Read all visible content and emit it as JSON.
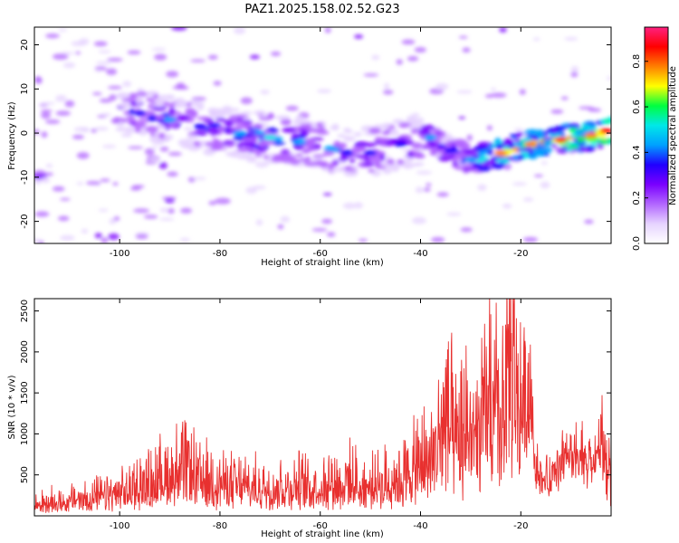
{
  "figure": {
    "title": "PAZ1.2025.158.02.52.G23"
  },
  "chart_data": [
    {
      "type": "heatmap",
      "xlabel": "Height of straight line (km)",
      "ylabel": "Frequency (Hz)",
      "xlim": [
        -117,
        -2
      ],
      "ylim": [
        -25,
        24
      ],
      "x_ticks": [
        -100,
        -80,
        -60,
        -40,
        -20
      ],
      "x_tick_labels": [
        "-100",
        "-80",
        "-60",
        "-40",
        "-20"
      ],
      "y_ticks": [
        20,
        10,
        0,
        -10,
        -20
      ],
      "y_tick_labels": [
        "20",
        "10",
        "0",
        "-10",
        "-20"
      ],
      "colorbar": {
        "label": "Normalized spectral amplitude",
        "range": [
          0,
          0.95
        ],
        "ticks": [
          0.0,
          0.2,
          0.4,
          0.6,
          0.8
        ],
        "tick_labels": [
          "0.0",
          "0.2",
          "0.4",
          "0.6",
          "0.8"
        ],
        "colors": [
          "#ffffff",
          "#e6d3ff",
          "#b266ff",
          "#7a00ff",
          "#2000ff",
          "#00a0ff",
          "#00e8e8",
          "#00ff40",
          "#ffff00",
          "#ff7f00",
          "#ff0000",
          "#ff2080"
        ]
      },
      "ridge": [
        {
          "x": -96,
          "y": 4.5,
          "amp": 0.35
        },
        {
          "x": -90,
          "y": 3,
          "amp": 0.4
        },
        {
          "x": -84,
          "y": 1.5,
          "amp": 0.35
        },
        {
          "x": -76,
          "y": 0,
          "amp": 0.45
        },
        {
          "x": -70,
          "y": -1,
          "amp": 0.5
        },
        {
          "x": -64,
          "y": -2,
          "amp": 0.4
        },
        {
          "x": -58,
          "y": -3.5,
          "amp": 0.45
        },
        {
          "x": -50,
          "y": -4.5,
          "amp": 0.35
        },
        {
          "x": -44,
          "y": -2.5,
          "amp": 0.35
        },
        {
          "x": -38,
          "y": -1,
          "amp": 0.4
        },
        {
          "x": -34,
          "y": -4,
          "amp": 0.35
        },
        {
          "x": -30,
          "y": -6,
          "amp": 0.45
        },
        {
          "x": -24,
          "y": -4.5,
          "amp": 0.8
        },
        {
          "x": -18,
          "y": -2.5,
          "amp": 0.75
        },
        {
          "x": -12,
          "y": -1.5,
          "amp": 0.85
        },
        {
          "x": -6,
          "y": -0.5,
          "amp": 0.8
        },
        {
          "x": -3,
          "y": 0.5,
          "amp": 0.85
        }
      ]
    },
    {
      "type": "line",
      "xlabel": "Height of straight line (km)",
      "ylabel": "SNR (10 * v/v)",
      "xlim": [
        -117,
        -2
      ],
      "ylim": [
        0,
        2650
      ],
      "x_ticks": [
        -100,
        -80,
        -60,
        -40,
        -20
      ],
      "x_tick_labels": [
        "-100",
        "-80",
        "-60",
        "-40",
        "-20"
      ],
      "y_ticks": [
        500,
        1000,
        1500,
        2000,
        2500
      ],
      "y_tick_labels": [
        "500",
        "1000",
        "1500",
        "2000",
        "2500"
      ],
      "series": [
        {
          "color": "#e8302f",
          "x": [
            -117,
            -112,
            -108,
            -104,
            -100,
            -98,
            -96,
            -94,
            -92,
            -90,
            -88,
            -86,
            -84,
            -82,
            -80,
            -78,
            -76,
            -74,
            -72,
            -70,
            -68,
            -66,
            -64,
            -62,
            -60,
            -58,
            -56,
            -54,
            -52,
            -50,
            -48,
            -46,
            -44,
            -42,
            -40,
            -38,
            -36,
            -35,
            -34,
            -33,
            -32,
            -31,
            -30,
            -29,
            -28,
            -27,
            -26,
            -25,
            -24,
            -23,
            -22,
            -21,
            -20,
            -19,
            -18,
            -17,
            -16,
            -15,
            -14,
            -13,
            -12,
            -11,
            -10,
            -9,
            -8,
            -7,
            -6,
            -5,
            -4,
            -3,
            -2
          ],
          "values": [
            150,
            200,
            230,
            260,
            300,
            350,
            420,
            480,
            520,
            600,
            650,
            640,
            500,
            480,
            450,
            430,
            420,
            400,
            380,
            400,
            420,
            380,
            430,
            400,
            420,
            480,
            450,
            480,
            420,
            400,
            430,
            480,
            520,
            600,
            700,
            800,
            1100,
            1400,
            1200,
            900,
            1000,
            1200,
            1300,
            1000,
            1100,
            1500,
            1600,
            1400,
            1300,
            1800,
            2000,
            1700,
            1500,
            1600,
            1800,
            700,
            550,
            500,
            480,
            700,
            800,
            750,
            850,
            780,
            820,
            760,
            800,
            750,
            1150,
            700,
            720
          ]
        }
      ]
    }
  ]
}
